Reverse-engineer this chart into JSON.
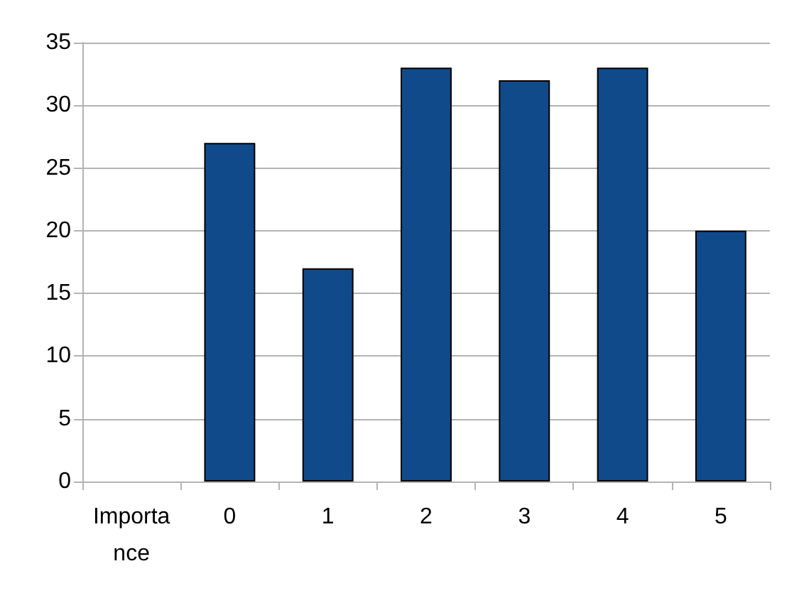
{
  "chart_data": {
    "type": "bar",
    "categories": [
      "Importance",
      "0",
      "1",
      "2",
      "3",
      "4",
      "5"
    ],
    "values": [
      null,
      27,
      17,
      33,
      32,
      33,
      20
    ],
    "color": "#114a8b",
    "ylim": [
      0,
      35
    ],
    "yticks": [
      0,
      5,
      10,
      15,
      20,
      25,
      30,
      35
    ],
    "grid": "y"
  }
}
